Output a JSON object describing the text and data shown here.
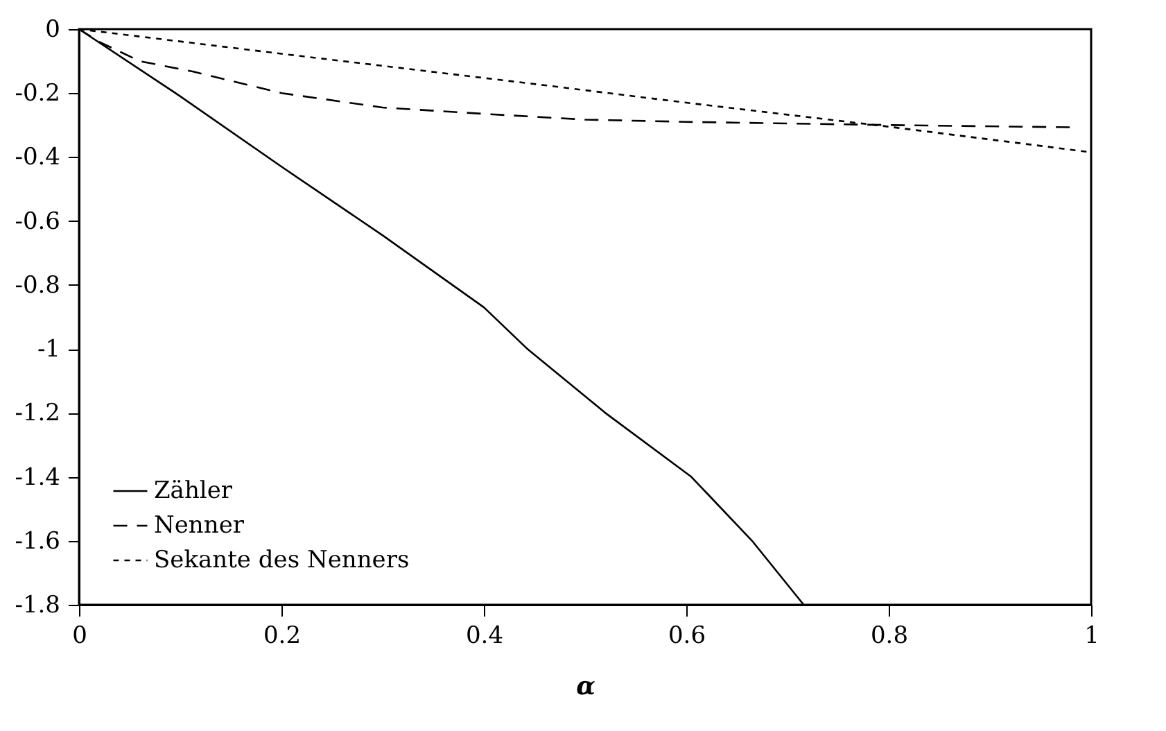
{
  "chart_data": {
    "type": "line",
    "xlabel": "α",
    "xlim": [
      0,
      1
    ],
    "ylim": [
      -1.8,
      0
    ],
    "xticks": [
      0,
      0.2,
      0.4,
      0.6,
      0.8,
      1
    ],
    "yticks": [
      -1.8,
      -1.6,
      -1.4,
      -1.2,
      -1,
      -0.8,
      -0.6,
      -0.4,
      -0.2,
      0
    ],
    "grid": false,
    "legend": "bottom left",
    "marker": "none",
    "series": [
      {
        "name": "Zähler",
        "color": "#000000",
        "line_style": "solid",
        "x": [
          0,
          0.1,
          0.2,
          0.3,
          0.4,
          0.443,
          0.52,
          0.605,
          0.665,
          0.716
        ],
        "values": [
          0,
          -0.21,
          -0.43,
          -0.645,
          -0.87,
          -1.0,
          -1.2,
          -1.4,
          -1.6,
          -1.8
        ]
      },
      {
        "name": "Nenner",
        "color": "#000000",
        "line_style": "dashed",
        "x": [
          0,
          0.02,
          0.06,
          0.113,
          0.2,
          0.3,
          0.4,
          0.5,
          0.6,
          0.8,
          0.98
        ],
        "values": [
          0,
          -0.04,
          -0.1,
          -0.133,
          -0.2,
          -0.245,
          -0.265,
          -0.283,
          -0.29,
          -0.3,
          -0.307
        ]
      },
      {
        "name": "Sekante des Nenners",
        "color": "#000000",
        "line_style": "dotted",
        "x": [
          0,
          0.2,
          0.459,
          0.6,
          0.8,
          1
        ],
        "values": [
          0,
          -0.077,
          -0.175,
          -0.23,
          -0.305,
          -0.385
        ]
      }
    ]
  }
}
